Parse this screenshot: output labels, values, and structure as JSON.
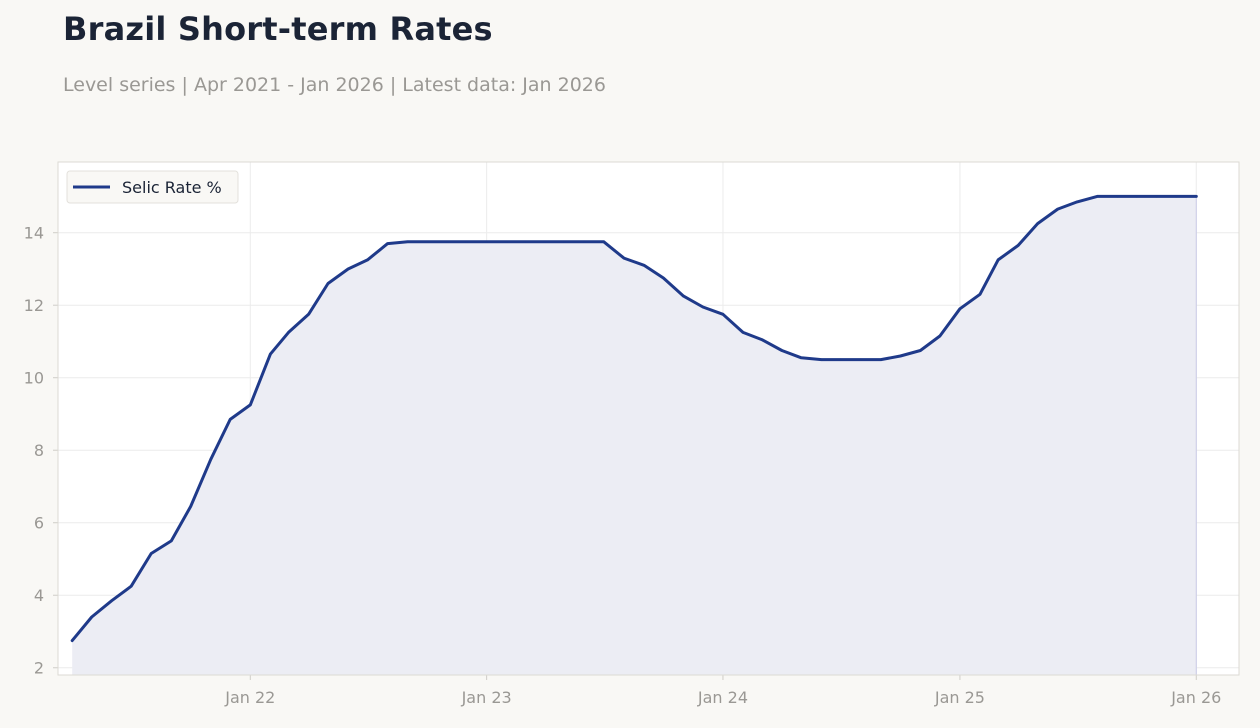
{
  "header": {
    "title": "Brazil Short-term Rates",
    "subtitle": "Level series | Apr 2021 - Jan 2026 | Latest data: Jan 2026"
  },
  "colors": {
    "line": "#1f3a8a",
    "fill": "#ecedf4",
    "background": "#f9f8f5",
    "plot_background": "#ffffff",
    "grid": "#ececec",
    "text": "#1b2436",
    "muted_text": "#9a9894"
  },
  "chart_data": {
    "type": "line",
    "title": "Brazil Short-term Rates",
    "xlabel": "",
    "ylabel": "",
    "area_fill": true,
    "grid": true,
    "legend_position": "top-left",
    "x_ticks": [
      {
        "label": "Jan 22",
        "value": "2022-01"
      },
      {
        "label": "Jan 23",
        "value": "2023-01"
      },
      {
        "label": "Jan 24",
        "value": "2024-01"
      },
      {
        "label": "Jan 25",
        "value": "2025-01"
      },
      {
        "label": "Jan 26",
        "value": "2026-01"
      }
    ],
    "y_ticks": [
      2,
      4,
      6,
      8,
      10,
      12,
      14
    ],
    "ylim": [
      1.8,
      15.95
    ],
    "xlim": [
      "2021-03-10",
      "2026-03-08"
    ],
    "series": [
      {
        "name": "Selic Rate %",
        "x": [
          "2021-04",
          "2021-05",
          "2021-06",
          "2021-07",
          "2021-08",
          "2021-09",
          "2021-10",
          "2021-11",
          "2021-12",
          "2022-01",
          "2022-02",
          "2022-03",
          "2022-04",
          "2022-05",
          "2022-06",
          "2022-07",
          "2022-08",
          "2022-09",
          "2022-10",
          "2022-11",
          "2022-12",
          "2023-01",
          "2023-02",
          "2023-03",
          "2023-04",
          "2023-05",
          "2023-06",
          "2023-07",
          "2023-08",
          "2023-09",
          "2023-10",
          "2023-11",
          "2023-12",
          "2024-01",
          "2024-02",
          "2024-03",
          "2024-04",
          "2024-05",
          "2024-06",
          "2024-07",
          "2024-08",
          "2024-09",
          "2024-10",
          "2024-11",
          "2024-12",
          "2025-01",
          "2025-02",
          "2025-03",
          "2025-04",
          "2025-05",
          "2025-06",
          "2025-07",
          "2025-08",
          "2025-09",
          "2025-10",
          "2025-11",
          "2025-12",
          "2026-01"
        ],
        "values": [
          2.75,
          3.4,
          3.85,
          4.25,
          5.15,
          5.5,
          6.45,
          7.75,
          8.85,
          9.25,
          10.65,
          11.25,
          11.75,
          12.6,
          13.0,
          13.25,
          13.7,
          13.75,
          13.75,
          13.75,
          13.75,
          13.75,
          13.75,
          13.75,
          13.75,
          13.75,
          13.75,
          13.75,
          13.3,
          13.1,
          12.75,
          12.25,
          11.95,
          11.75,
          11.25,
          11.05,
          10.75,
          10.55,
          10.5,
          10.5,
          10.5,
          10.5,
          10.6,
          10.75,
          11.15,
          11.9,
          12.3,
          13.25,
          13.65,
          14.25,
          14.65,
          14.85,
          15.0,
          15.0,
          15.0,
          15.0,
          15.0,
          15.0
        ]
      }
    ]
  }
}
